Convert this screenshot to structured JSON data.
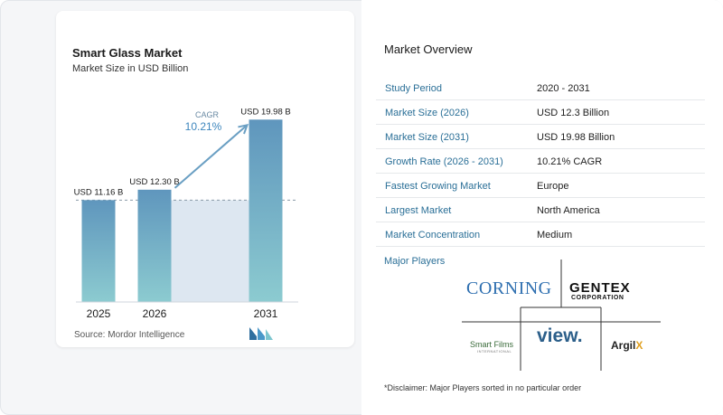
{
  "chart_data": {
    "type": "bar",
    "title": "Smart Glass Market",
    "subtitle": "Market Size in USD Billion",
    "categories": [
      "2025",
      "2026",
      "2031"
    ],
    "values": [
      11.16,
      12.3,
      19.98
    ],
    "data_labels": [
      "USD 11.16 B",
      "USD 12.30 B",
      "USD 19.98 B"
    ],
    "ylim": [
      0,
      21
    ],
    "grid": false,
    "annotation": {
      "label": "CAGR",
      "value": "10.21%"
    },
    "colors": {
      "bar_top": "#5f96bd",
      "bar_bottom": "#8ccbd0",
      "band": "#dde7f1",
      "arrow": "#6a9fc3",
      "cagr": "#3d86bd"
    }
  },
  "source": "Source:  Mordor Intelligence",
  "overview": {
    "title": "Market Overview",
    "rows": [
      {
        "key": "Study Period",
        "value": "2020 - 2031"
      },
      {
        "key": "Market Size (2026)",
        "value": "USD 12.3 Billion"
      },
      {
        "key": "Market Size (2031)",
        "value": "USD 19.98 Billion"
      },
      {
        "key": "Growth Rate (2026 - 2031)",
        "value": "10.21% CAGR"
      },
      {
        "key": "Fastest Growing Market",
        "value": "Europe"
      },
      {
        "key": "Largest Market",
        "value": "North America"
      },
      {
        "key": "Market Concentration",
        "value": "Medium"
      }
    ]
  },
  "players": {
    "title": "Major Players",
    "logos": [
      "CORNING",
      "GENTEX",
      "CORPORATION",
      "Smart Films",
      "INTERNATIONAL",
      "view.",
      "Argil",
      "X"
    ]
  },
  "disclaimer": "*Disclaimer: Major Players sorted in no particular order"
}
